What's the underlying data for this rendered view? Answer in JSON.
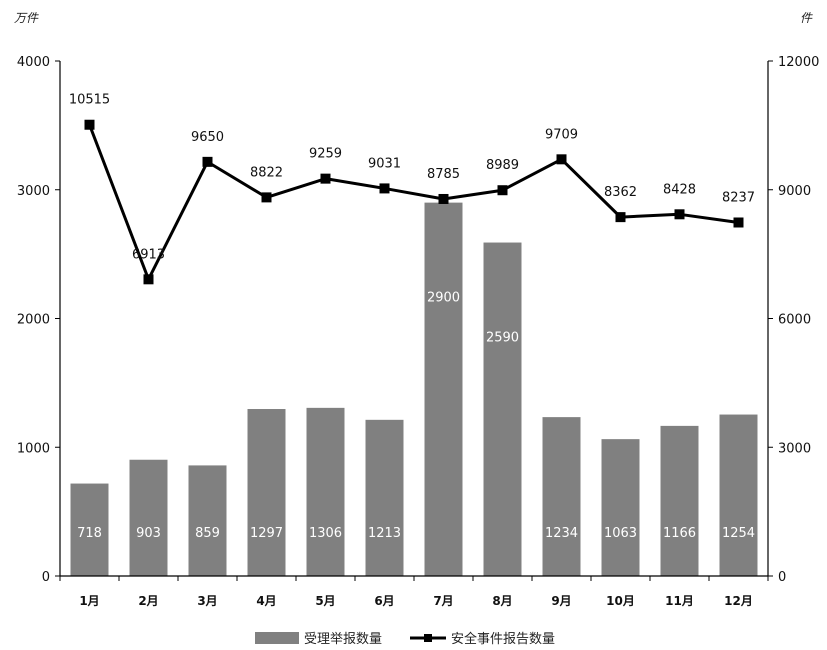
{
  "chart_data": {
    "type": "bar+line",
    "left_unit": "万件",
    "right_unit": "件",
    "categories": [
      "1月",
      "2月",
      "3月",
      "4月",
      "5月",
      "6月",
      "7月",
      "8月",
      "9月",
      "10月",
      "11月",
      "12月"
    ],
    "series": [
      {
        "name": "受理举报数量",
        "type": "bar",
        "axis": "left",
        "color": "#808080",
        "values": [
          718,
          903,
          859,
          1297,
          1306,
          1213,
          2900,
          2590,
          1234,
          1063,
          1166,
          1254
        ]
      },
      {
        "name": "安全事件报告数量",
        "type": "line",
        "axis": "right",
        "color": "#000000",
        "values": [
          10515,
          6913,
          9650,
          8822,
          9259,
          9031,
          8785,
          8989,
          9709,
          8362,
          8428,
          8237
        ]
      }
    ],
    "left_axis": {
      "ylim": [
        0,
        4000
      ],
      "ticks": [
        "0",
        "1000",
        "2000",
        "3000",
        "4000"
      ]
    },
    "right_axis": {
      "ylim": [
        0,
        12000
      ],
      "ticks": [
        "0",
        "3000",
        "6000",
        "9000",
        "12000"
      ]
    },
    "grid": false,
    "legend_position": "bottom-center"
  }
}
